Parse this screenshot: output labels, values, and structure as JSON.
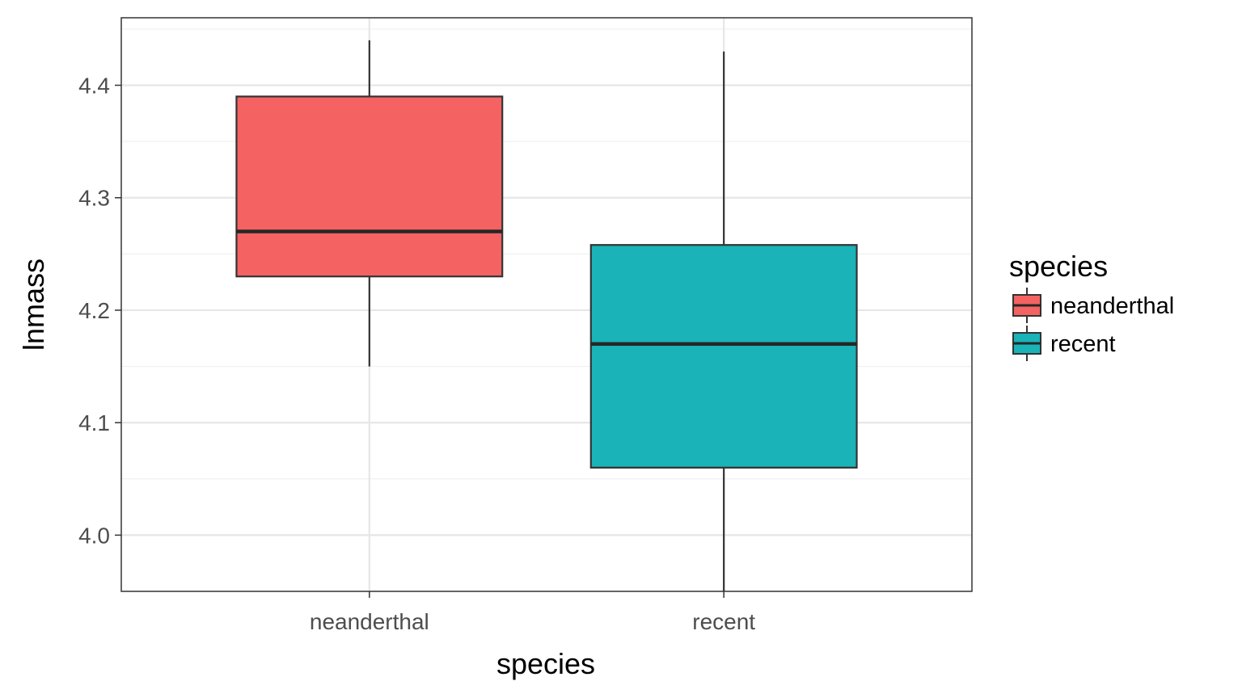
{
  "chart_data": {
    "type": "boxplot",
    "xlabel": "species",
    "ylabel": "lnmass",
    "categories": [
      "neanderthal",
      "recent"
    ],
    "ylim": [
      3.95,
      4.46
    ],
    "yticks": [
      "4.0",
      "4.1",
      "4.2",
      "4.3",
      "4.4"
    ],
    "ytick_values": [
      4.0,
      4.1,
      4.2,
      4.3,
      4.4
    ],
    "grid": true,
    "legend": {
      "title": "species",
      "position": "right",
      "entries": [
        "neanderthal",
        "recent"
      ]
    },
    "boxes": [
      {
        "category": "neanderthal",
        "min": 4.15,
        "q1": 4.23,
        "median": 4.27,
        "q3": 4.39,
        "max": 4.44,
        "color": "#F46262"
      },
      {
        "category": "recent",
        "min": 3.95,
        "q1": 4.06,
        "median": 4.17,
        "q3": 4.258,
        "max": 4.43,
        "color": "#19B3B8"
      }
    ]
  }
}
